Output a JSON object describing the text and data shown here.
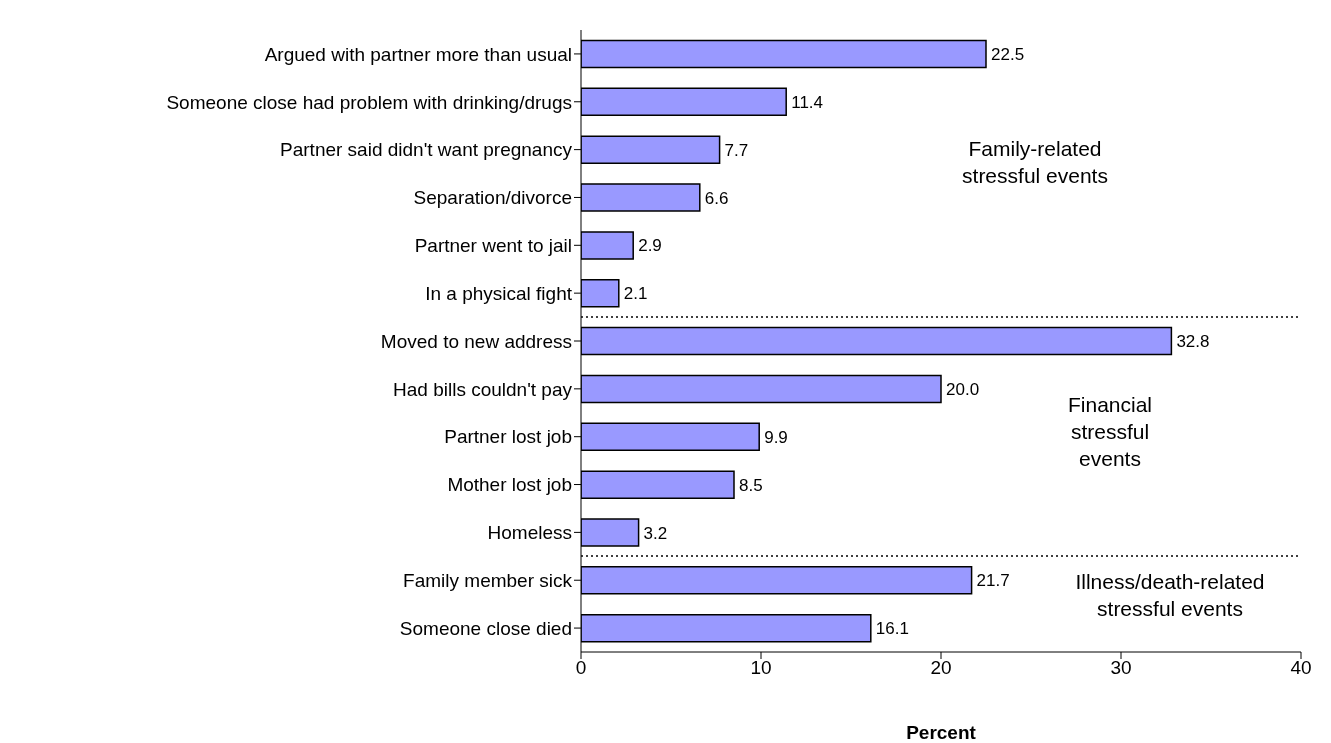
{
  "chart_data": {
    "type": "bar",
    "orientation": "horizontal",
    "xlabel": "Percent",
    "categories": [
      "Argued with partner more than usual",
      "Someone close had problem with drinking/drugs",
      "Partner said didn't want pregnancy",
      "Separation/divorce",
      "Partner went to jail",
      "In a physical fight",
      "Moved to new address",
      "Had bills couldn't pay",
      "Partner lost job",
      "Mother lost job",
      "Homeless",
      "Family member sick",
      "Someone close died"
    ],
    "values": [
      22.5,
      11.4,
      7.7,
      6.6,
      2.9,
      2.1,
      32.8,
      20.0,
      9.9,
      8.5,
      3.2,
      21.7,
      16.1
    ],
    "value_labels": [
      "22.5",
      "11.4",
      "7.7",
      "6.6",
      "2.9",
      "2.1",
      "32.8",
      "20.0",
      "9.9",
      "8.5",
      "3.2",
      "21.7",
      "16.1"
    ],
    "color": "#9999ff",
    "xlim": [
      0,
      40
    ],
    "xticks": [
      0,
      10,
      20,
      30,
      40
    ],
    "grid": false,
    "legend": false,
    "annotations": [
      "Family-related stressful events",
      "Financial stressful events",
      "Illness/death-related stressful events"
    ]
  }
}
